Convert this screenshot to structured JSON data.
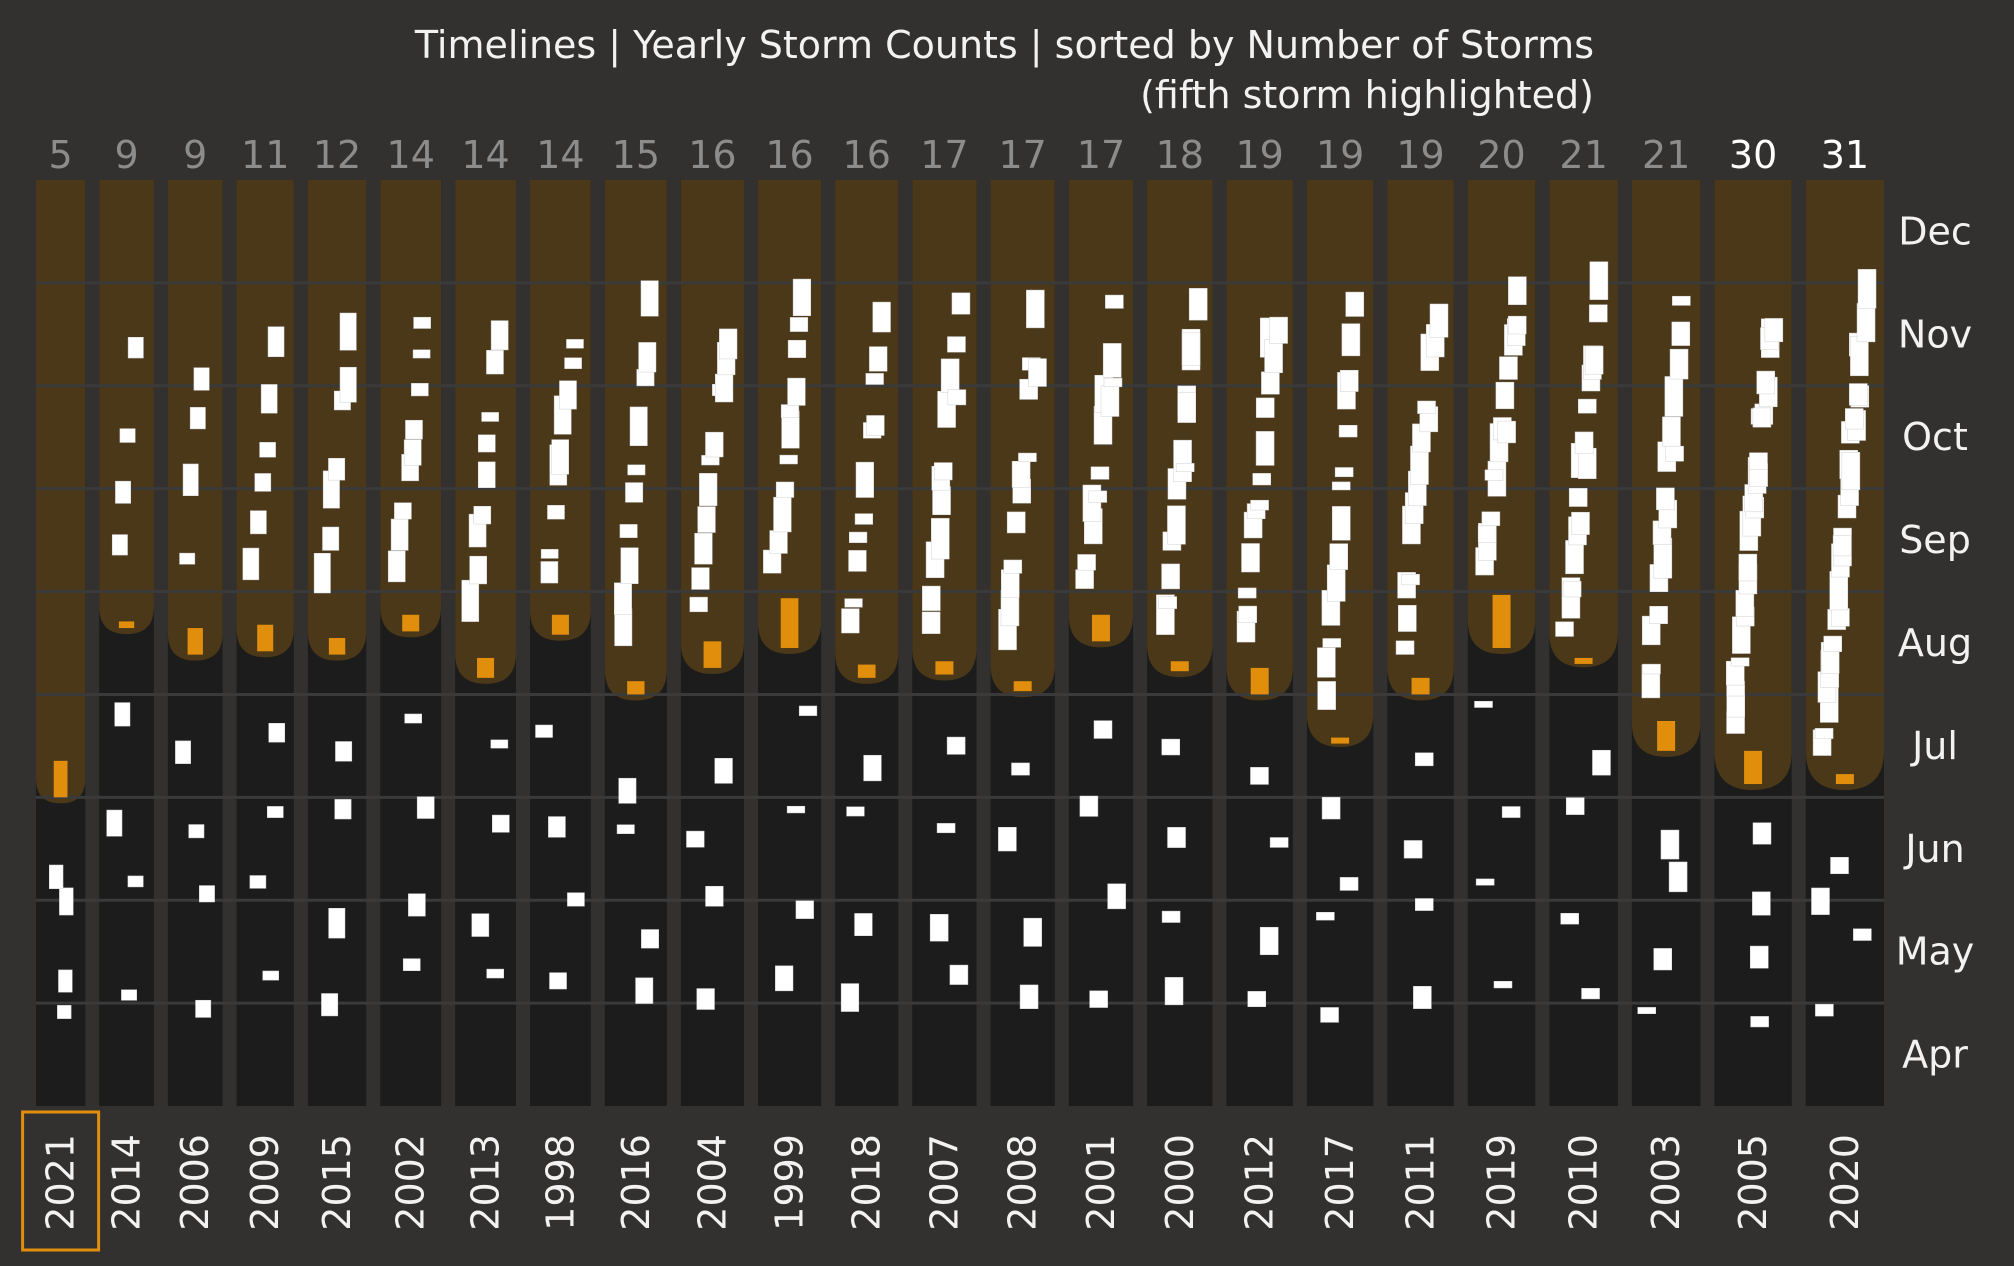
{
  "chart_data": {
    "type": "timeline",
    "title": "Timelines | Yearly Storm Counts | sorted by Number of Storms",
    "subtitle": "(fifth storm highlighted)",
    "months": [
      "Apr",
      "May",
      "Jun",
      "Jul",
      "Aug",
      "Sep",
      "Oct",
      "Nov",
      "Dec"
    ],
    "highlighted_year": "2021",
    "colors": {
      "background": "#323130",
      "column_before": "#1b1c1b",
      "column_after": "#4a3818",
      "storm": "#ffffff",
      "highlight": "#e08e0b",
      "count_faded": "#8c8c8c",
      "count_strong": "#ffffff"
    },
    "years": [
      {
        "year": "2021",
        "count": 5,
        "fifth_start": "Jul 1",
        "fifth_end": "Jul 12"
      },
      {
        "year": "2014",
        "count": 9,
        "fifth_start": "Aug 21",
        "fifth_end": "Aug 23"
      },
      {
        "year": "2006",
        "count": 9,
        "fifth_start": "Aug 13",
        "fifth_end": "Aug 21"
      },
      {
        "year": "2009",
        "count": 11,
        "fifth_start": "Aug 14",
        "fifth_end": "Aug 22"
      },
      {
        "year": "2015",
        "count": 12,
        "fifth_start": "Aug 13",
        "fifth_end": "Aug 18"
      },
      {
        "year": "2002",
        "count": 14,
        "fifth_start": "Aug 20",
        "fifth_end": "Aug 25"
      },
      {
        "year": "2013",
        "count": 14,
        "fifth_start": "Aug 6",
        "fifth_end": "Aug 12"
      },
      {
        "year": "1998",
        "count": 14,
        "fifth_start": "Aug 19",
        "fifth_end": "Aug 25"
      },
      {
        "year": "2016",
        "count": 15,
        "fifth_start": "Aug 1",
        "fifth_end": "Aug 5"
      },
      {
        "year": "2004",
        "count": 16,
        "fifth_start": "Aug 9",
        "fifth_end": "Aug 17"
      },
      {
        "year": "1999",
        "count": 16,
        "fifth_start": "Aug 15",
        "fifth_end": "Aug 30"
      },
      {
        "year": "2018",
        "count": 16,
        "fifth_start": "Aug 6",
        "fifth_end": "Aug 10"
      },
      {
        "year": "2007",
        "count": 17,
        "fifth_start": "Aug 7",
        "fifth_end": "Aug 11"
      },
      {
        "year": "2008",
        "count": 17,
        "fifth_start": "Aug 2",
        "fifth_end": "Aug 5"
      },
      {
        "year": "2001",
        "count": 17,
        "fifth_start": "Aug 17",
        "fifth_end": "Aug 25"
      },
      {
        "year": "2000",
        "count": 18,
        "fifth_start": "Aug 8",
        "fifth_end": "Aug 11"
      },
      {
        "year": "2012",
        "count": 19,
        "fifth_start": "Aug 1",
        "fifth_end": "Aug 9"
      },
      {
        "year": "2017",
        "count": 19,
        "fifth_start": "Jul 18",
        "fifth_end": "Jul 19"
      },
      {
        "year": "2011",
        "count": 19,
        "fifth_start": "Aug 1",
        "fifth_end": "Aug 6"
      },
      {
        "year": "2019",
        "count": 20,
        "fifth_start": "Aug 15",
        "fifth_end": "Aug 31"
      },
      {
        "year": "2010",
        "count": 21,
        "fifth_start": "Aug 11",
        "fifth_end": "Aug 12"
      },
      {
        "year": "2003",
        "count": 21,
        "fifth_start": "Jul 15",
        "fifth_end": "Jul 24"
      },
      {
        "year": "2005",
        "count": 30,
        "fifth_start": "Jul 5",
        "fifth_end": "Jul 15"
      },
      {
        "year": "2020",
        "count": 31,
        "fifth_start": "Jul 5",
        "fifth_end": "Jul 8"
      }
    ]
  }
}
